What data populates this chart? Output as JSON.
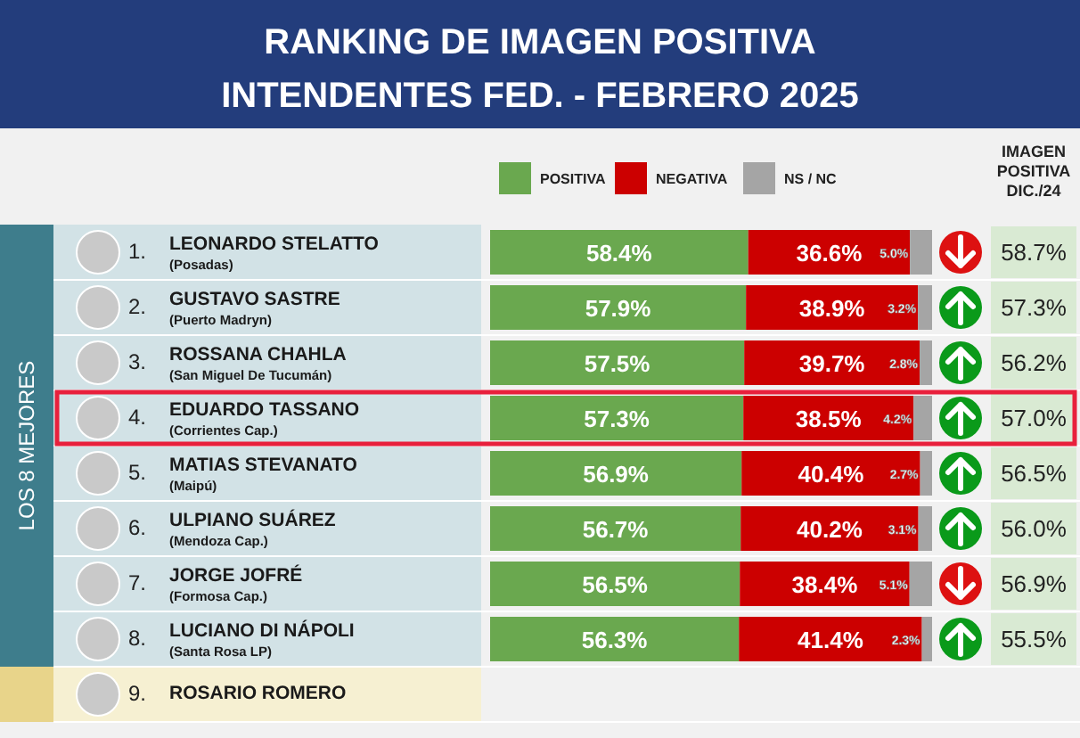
{
  "chart_data": {
    "type": "bar",
    "orientation": "horizontal",
    "stacked": true,
    "title": "RANKING DE IMAGEN POSITIVA",
    "subtitle": "INTENDENTES FED. - FEBRERO 2025",
    "categories": [
      "1. LEONARDO STELATTO\n(Posadas)",
      "2. GUSTAVO SASTRE\n(Puerto Madryn)",
      "3. ROSSANA CHAHLA\n(San Miguel De Tucumán)",
      "4. EDUARDO TASSANO\n(Corrientes Cap.)",
      "5. MATIAS STEVANATO\n(Maipú)",
      "6. ULPIANO SUÁREZ\n(Mendoza Cap.)",
      "7. JORGE JOFRÉ\n(Formosa Cap.)",
      "8. LUCIANO DI NÁPOLI\n(Santa Rosa LP)",
      "9. ROSARIO ROMERO"
    ],
    "series": [
      {
        "name": "POSITIVA",
        "color": "#6aa84f",
        "values": [
          58.4,
          57.9,
          57.5,
          57.3,
          56.9,
          56.7,
          56.5,
          56.3,
          null
        ],
        "value_labels": [
          "58.4%",
          "57.9%",
          "57.5%",
          "57.3%",
          "56.9%",
          "56.7%",
          "56.5%",
          "56.3%",
          null
        ]
      },
      {
        "name": "NEGATIVA",
        "color": "#cc0000",
        "values": [
          36.6,
          38.9,
          39.7,
          38.5,
          40.4,
          40.2,
          38.4,
          41.4,
          null
        ],
        "value_labels": [
          "36.6%",
          "38.9%",
          "39.7%",
          "38.5%",
          "40.4%",
          "40.2%",
          "38.4%",
          "41.4%",
          null
        ]
      },
      {
        "name": "NS / NC",
        "color": "#a5a5a5",
        "values": [
          5.0,
          3.2,
          2.8,
          4.2,
          2.7,
          3.1,
          5.1,
          2.3,
          null
        ],
        "value_labels": [
          "5.0%",
          "3.2%",
          "2.8%",
          "4.2%",
          "2.7%",
          "3.1%",
          "5.1%",
          "2.3%",
          null
        ]
      }
    ],
    "xlim": [
      0,
      100
    ],
    "tick_labels": false,
    "legend": "top",
    "data_labels": true,
    "y2label": "IMAGEN POSITIVA DIC./24",
    "annotations": [
      "58.7%",
      "57.3%",
      "56.2%",
      "57.0%",
      "56.5%",
      "56.0%",
      "56.9%",
      "55.5%",
      "LOS 8 MEJORES"
    ]
  }
}
